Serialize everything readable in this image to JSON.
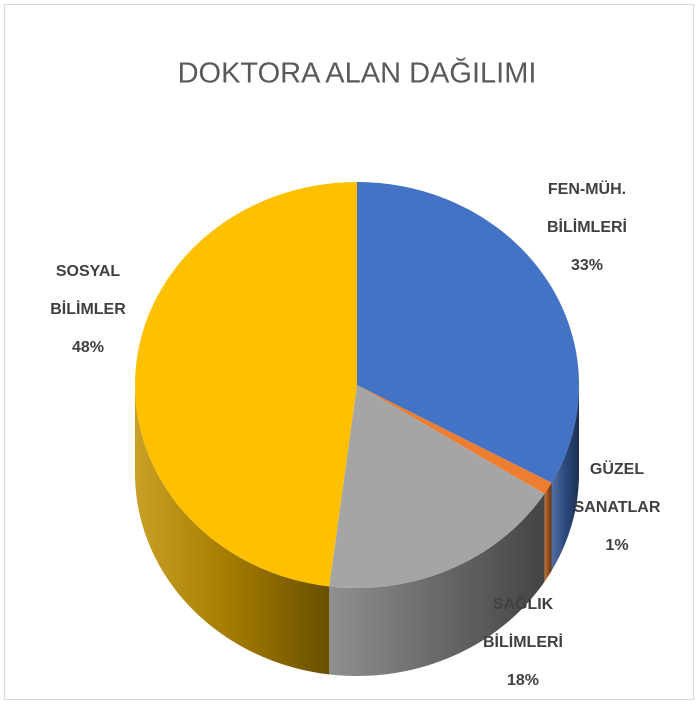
{
  "chart_data": {
    "type": "pie",
    "title": "DOKTORA  ALAN DAĞILIMI",
    "categories": [
      [
        "FEN-MÜH.",
        "BİLİMLERİ"
      ],
      [
        "GÜZEL",
        "SANATLAR"
      ],
      [
        "SAĞLIK",
        "BİLİMLERİ"
      ],
      [
        "SOSYAL",
        "BİLİMLER"
      ]
    ],
    "values": [
      33,
      1,
      18,
      48
    ],
    "value_labels": [
      "33%",
      "1%",
      "18%",
      "48%"
    ],
    "colors": [
      "#4472c4",
      "#ed7d31",
      "#a5a5a5",
      "#ffc000"
    ],
    "three_d": true
  }
}
